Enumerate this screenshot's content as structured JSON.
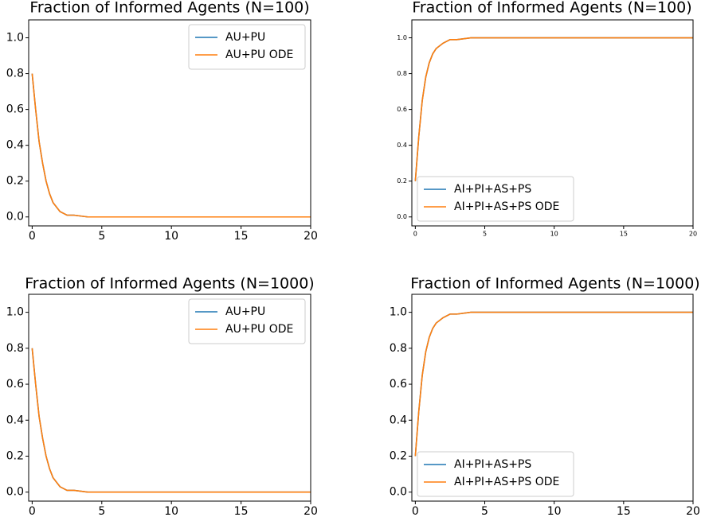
{
  "chart_data": [
    {
      "type": "line",
      "title": "Fraction of Informed Agents (N=100)",
      "x": [
        0,
        0.25,
        0.5,
        0.75,
        1,
        1.25,
        1.5,
        2,
        2.5,
        3,
        4,
        5,
        10,
        15,
        20
      ],
      "series": [
        {
          "name": "AU+PU",
          "color": "#1f77b4",
          "values": [
            0.8,
            0.6,
            0.42,
            0.3,
            0.2,
            0.13,
            0.08,
            0.03,
            0.01,
            0.01,
            0,
            0,
            0,
            0,
            0
          ]
        },
        {
          "name": "AU+PU ODE",
          "color": "#ff7f0e",
          "values": [
            0.8,
            0.6,
            0.42,
            0.3,
            0.2,
            0.13,
            0.08,
            0.03,
            0.01,
            0.01,
            0,
            0,
            0,
            0,
            0
          ]
        }
      ],
      "xlim": [
        -0.25,
        20
      ],
      "ylim": [
        -0.05,
        1.1
      ],
      "xticks": [
        0,
        5,
        10,
        15,
        20
      ],
      "yticks": [
        {
          "value": 0,
          "label": "0.0"
        },
        0.2,
        0.4,
        0.6,
        0.8,
        {
          "value": 1,
          "label": "1.0"
        }
      ],
      "legend": "upper right"
    },
    {
      "type": "line",
      "title": "Fraction of Informed Agents (N=100)",
      "x": [
        0,
        0.25,
        0.5,
        0.75,
        1,
        1.25,
        1.5,
        2,
        2.5,
        3,
        4,
        5,
        10,
        15,
        20
      ],
      "series": [
        {
          "name": "AI+PI+AS+PS",
          "color": "#1f77b4",
          "values": [
            0.2,
            0.45,
            0.65,
            0.78,
            0.86,
            0.91,
            0.94,
            0.97,
            0.99,
            0.99,
            1,
            1,
            1,
            1,
            1
          ]
        },
        {
          "name": "AI+PI+AS+PS ODE",
          "color": "#ff7f0e",
          "values": [
            0.2,
            0.45,
            0.65,
            0.78,
            0.86,
            0.91,
            0.94,
            0.97,
            0.99,
            0.99,
            1,
            1,
            1,
            1,
            1
          ]
        }
      ],
      "xlim": [
        -0.25,
        20
      ],
      "ylim": [
        -0.05,
        1.1
      ],
      "xticks": [
        0,
        5,
        10,
        15,
        20
      ],
      "yticks": [
        {
          "value": 0,
          "label": "0.0"
        },
        0.2,
        0.4,
        0.6,
        0.8,
        {
          "value": 1,
          "label": "1.0"
        }
      ],
      "legend": "lower left"
    },
    {
      "type": "line",
      "title": "Fraction of Informed Agents (N=1000)",
      "x": [
        0,
        0.25,
        0.5,
        0.75,
        1,
        1.25,
        1.5,
        2,
        2.5,
        3,
        4,
        5,
        10,
        15,
        20
      ],
      "series": [
        {
          "name": "AU+PU",
          "color": "#1f77b4",
          "values": [
            0.8,
            0.6,
            0.42,
            0.3,
            0.2,
            0.13,
            0.08,
            0.03,
            0.01,
            0.01,
            0,
            0,
            0,
            0,
            0
          ]
        },
        {
          "name": "AU+PU ODE",
          "color": "#ff7f0e",
          "values": [
            0.8,
            0.6,
            0.42,
            0.3,
            0.2,
            0.13,
            0.08,
            0.03,
            0.01,
            0.01,
            0,
            0,
            0,
            0,
            0
          ]
        }
      ],
      "xlim": [
        -0.25,
        20
      ],
      "ylim": [
        -0.05,
        1.1
      ],
      "xticks": [
        0,
        5,
        10,
        15,
        20
      ],
      "yticks": [
        {
          "value": 0,
          "label": "0.0"
        },
        0.2,
        0.4,
        0.6,
        0.8,
        {
          "value": 1,
          "label": "1.0"
        }
      ],
      "legend": "upper right"
    },
    {
      "type": "line",
      "title": "Fraction of Informed Agents (N=1000)",
      "x": [
        0,
        0.25,
        0.5,
        0.75,
        1,
        1.25,
        1.5,
        2,
        2.5,
        3,
        4,
        5,
        10,
        15,
        20
      ],
      "series": [
        {
          "name": "AI+PI+AS+PS",
          "color": "#1f77b4",
          "values": [
            0.2,
            0.45,
            0.65,
            0.78,
            0.86,
            0.91,
            0.94,
            0.97,
            0.99,
            0.99,
            1,
            1,
            1,
            1,
            1
          ]
        },
        {
          "name": "AI+PI+AS+PS ODE",
          "color": "#ff7f0e",
          "values": [
            0.2,
            0.45,
            0.65,
            0.78,
            0.86,
            0.91,
            0.94,
            0.97,
            0.99,
            0.99,
            1,
            1,
            1,
            1,
            1
          ]
        }
      ],
      "xlim": [
        -0.25,
        20
      ],
      "ylim": [
        -0.05,
        1.1
      ],
      "xticks": [
        0,
        5,
        10,
        15,
        20
      ],
      "yticks": [
        {
          "value": 0,
          "label": "0.0"
        },
        0.2,
        0.4,
        0.6,
        0.8,
        {
          "value": 1,
          "label": "1.0"
        }
      ],
      "legend": "lower left"
    }
  ]
}
